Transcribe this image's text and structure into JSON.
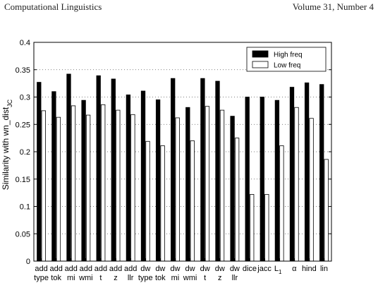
{
  "page_header": {
    "left": "Computational Linguistics",
    "right": "Volume 31, Number 4"
  },
  "chart_data": {
    "type": "bar",
    "title": "",
    "xlabel": "",
    "ylabel": "Similarity with wn_dist",
    "ylabel_subscript": "JC",
    "ylim": [
      0,
      0.4
    ],
    "yticks": [
      "0",
      "0.05",
      "0.1",
      "0.15",
      "0.2",
      "0.25",
      "0.3",
      "0.35",
      "0.4"
    ],
    "grid": "horizontal dotted",
    "legend_position": "top-right",
    "categories": [
      [
        "add",
        "type"
      ],
      [
        "add",
        "tok"
      ],
      [
        "add",
        "mi"
      ],
      [
        "add",
        "wmi"
      ],
      [
        "add",
        "t"
      ],
      [
        "add",
        "z"
      ],
      [
        "add",
        "llr"
      ],
      [
        "dw",
        "type"
      ],
      [
        "dw",
        "tok"
      ],
      [
        "dw",
        "mi"
      ],
      [
        "dw",
        "wmi"
      ],
      [
        "dw",
        "t"
      ],
      [
        "dw",
        "z"
      ],
      [
        "dw",
        "llr"
      ],
      [
        "dice",
        ""
      ],
      [
        "jacc",
        ""
      ],
      [
        "L1",
        ""
      ],
      [
        "α",
        ""
      ],
      [
        "hind",
        ""
      ],
      [
        "lin",
        ""
      ]
    ],
    "series": [
      {
        "name": "High freq",
        "color": "#000000",
        "values": [
          0.327,
          0.31,
          0.342,
          0.294,
          0.339,
          0.333,
          0.304,
          0.311,
          0.295,
          0.334,
          0.281,
          0.334,
          0.329,
          0.265,
          0.3,
          0.3,
          0.294,
          0.318,
          0.326,
          0.323
        ]
      },
      {
        "name": "Low freq",
        "color": "#ffffff",
        "values": [
          0.275,
          0.263,
          0.284,
          0.267,
          0.286,
          0.276,
          0.268,
          0.219,
          0.211,
          0.262,
          0.22,
          0.283,
          0.276,
          0.225,
          0.122,
          0.122,
          0.211,
          0.281,
          0.261,
          0.186
        ]
      }
    ]
  }
}
